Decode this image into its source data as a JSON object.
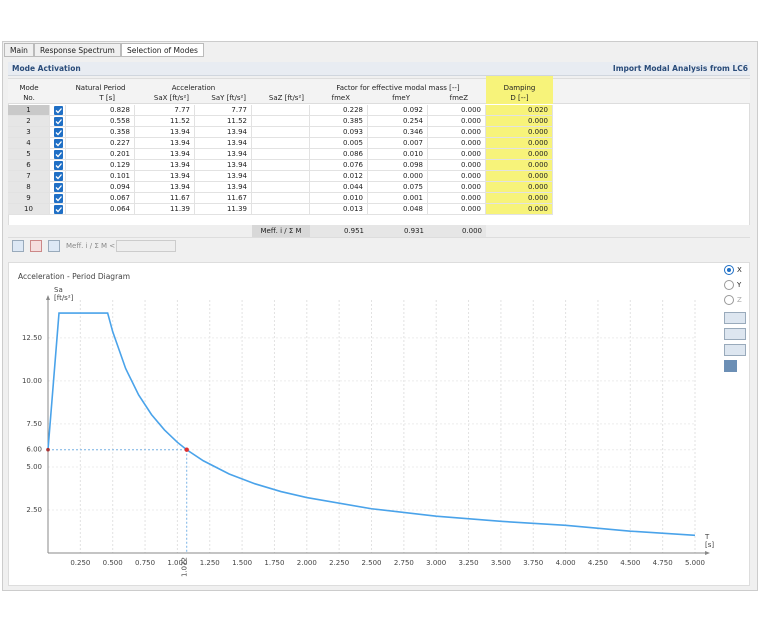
{
  "tabs": [
    "Main",
    "Response Spectrum",
    "Selection of Modes"
  ],
  "section": {
    "title": "Mode Activation",
    "action": "Import Modal Analysis from LC6"
  },
  "table": {
    "header": {
      "mode": [
        "Mode",
        "No."
      ],
      "period": [
        "Natural Period",
        "T [s]"
      ],
      "acceleration": "Acceleration",
      "sa": [
        "SaX [ft/s²]",
        "SaY [ft/s²]",
        "SaZ [ft/s²]"
      ],
      "factor": "Factor for effective modal mass [--]",
      "fme": [
        "fmeX",
        "fmeY",
        "fmeZ"
      ],
      "damping": [
        "Damping",
        "D [--]"
      ]
    },
    "rows": [
      [
        "1",
        "0.828",
        "7.77",
        "7.77",
        "0.228",
        "0.092",
        "0.000",
        "0.020"
      ],
      [
        "2",
        "0.558",
        "11.52",
        "11.52",
        "0.385",
        "0.254",
        "0.000",
        "0.000"
      ],
      [
        "3",
        "0.358",
        "13.94",
        "13.94",
        "0.093",
        "0.346",
        "0.000",
        "0.000"
      ],
      [
        "4",
        "0.227",
        "13.94",
        "13.94",
        "0.005",
        "0.007",
        "0.000",
        "0.000"
      ],
      [
        "5",
        "0.201",
        "13.94",
        "13.94",
        "0.086",
        "0.010",
        "0.000",
        "0.000"
      ],
      [
        "6",
        "0.129",
        "13.94",
        "13.94",
        "0.076",
        "0.098",
        "0.000",
        "0.000"
      ],
      [
        "7",
        "0.101",
        "13.94",
        "13.94",
        "0.012",
        "0.000",
        "0.000",
        "0.000"
      ],
      [
        "8",
        "0.094",
        "13.94",
        "13.94",
        "0.044",
        "0.075",
        "0.000",
        "0.000"
      ],
      [
        "9",
        "0.067",
        "11.67",
        "11.67",
        "0.010",
        "0.001",
        "0.000",
        "0.000"
      ],
      [
        "10",
        "0.064",
        "11.39",
        "11.39",
        "0.013",
        "0.048",
        "0.000",
        "0.000"
      ]
    ],
    "footer": {
      "label": "Meff. i / Σ M",
      "values": [
        "0.951",
        "0.931",
        "0.000"
      ]
    }
  },
  "toolbar": {
    "filter_label": "Meff. i / Σ M <"
  },
  "radio": {
    "options": [
      "X",
      "Y",
      "Z"
    ],
    "selected": 0
  },
  "chart_data": {
    "type": "line",
    "title": "Acceleration - Period Diagram",
    "y_label": [
      "Sa",
      "[ft/s²]"
    ],
    "x_label": [
      "T",
      "[s]"
    ],
    "x": [
      0,
      0.085,
      0.461,
      0.5,
      0.6,
      0.7,
      0.8,
      0.9,
      1.0,
      1.072,
      1.2,
      1.4,
      1.6,
      1.8,
      2.0,
      2.5,
      3.0,
      3.5,
      4.0,
      4.5,
      5.0
    ],
    "values": [
      6.0,
      13.94,
      13.94,
      12.86,
      10.72,
      9.19,
      8.04,
      7.15,
      6.43,
      6.0,
      5.36,
      4.59,
      4.02,
      3.57,
      3.22,
      2.57,
      2.14,
      1.84,
      1.61,
      1.27,
      1.03
    ],
    "color": "#4aa3ea",
    "marker": {
      "x": 1.072,
      "y": 6.0,
      "color": "#e03030"
    },
    "xlim": [
      0,
      5
    ],
    "ylim": [
      0,
      14.7
    ],
    "xticks": [
      {
        "value": 0.25,
        "label": "0.250"
      },
      {
        "value": 0.5,
        "label": "0.500"
      },
      {
        "value": 0.75,
        "label": "0.750"
      },
      {
        "value": 1,
        "label": "1.000"
      },
      {
        "value": 1.25,
        "label": "1.250"
      },
      {
        "value": 1.5,
        "label": "1.500"
      },
      {
        "value": 1.75,
        "label": "1.750"
      },
      {
        "value": 2,
        "label": "2.000"
      },
      {
        "value": 2.25,
        "label": "2.250"
      },
      {
        "value": 2.5,
        "label": "2.500"
      },
      {
        "value": 2.75,
        "label": "2.750"
      },
      {
        "value": 3,
        "label": "3.000"
      },
      {
        "value": 3.25,
        "label": "3.250"
      },
      {
        "value": 3.5,
        "label": "3.500"
      },
      {
        "value": 3.75,
        "label": "3.750"
      },
      {
        "value": 4,
        "label": "4.000"
      },
      {
        "value": 4.25,
        "label": "4.250"
      },
      {
        "value": 4.5,
        "label": "4.500"
      },
      {
        "value": 4.75,
        "label": "4.750"
      },
      {
        "value": 5,
        "label": "5.000"
      }
    ],
    "yticks": [
      {
        "value": 2.5,
        "label": "2.50"
      },
      {
        "value": 5,
        "label": "5.00"
      },
      {
        "value": 6,
        "label": "6.00"
      },
      {
        "value": 7.5,
        "label": "7.50"
      },
      {
        "value": 10,
        "label": "10.00"
      },
      {
        "value": 12.5,
        "label": "12.50"
      }
    ],
    "grid": true
  }
}
